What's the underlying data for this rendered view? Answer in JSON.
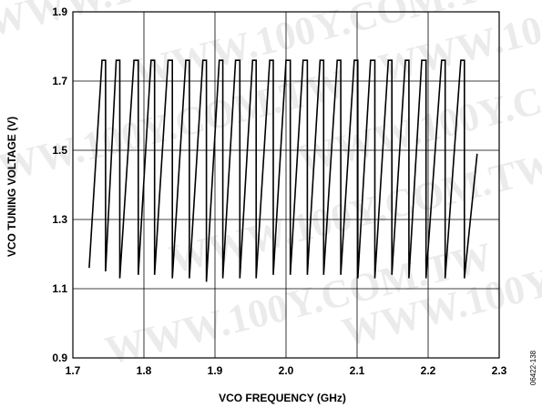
{
  "chart_data": {
    "type": "line",
    "xlabel": "VCO FREQUENCY (GHz)",
    "ylabel": "VCO TUNING VOLTAGE (V)",
    "xlim": [
      1.7,
      2.3
    ],
    "ylim": [
      0.9,
      1.9
    ],
    "x_ticks": [
      "1.7",
      "1.8",
      "1.9",
      "2.0",
      "2.1",
      "2.2",
      "2.3"
    ],
    "y_ticks": [
      "0.9",
      "1.1",
      "1.3",
      "1.5",
      "1.7",
      "1.9"
    ],
    "grid": true,
    "series": [
      {
        "x": [
          1.723,
          1.741,
          1.746,
          1.746,
          1.761,
          1.766,
          1.766,
          1.786,
          1.792,
          1.792,
          1.81,
          1.815,
          1.815,
          1.834,
          1.84,
          1.84,
          1.859,
          1.864,
          1.864,
          1.883,
          1.888,
          1.888,
          1.906,
          1.911,
          1.911,
          1.929,
          1.935,
          1.935,
          1.953,
          1.958,
          1.958,
          1.977,
          1.982,
          1.982,
          2.0,
          2.006,
          2.006,
          2.024,
          2.03,
          2.03,
          2.048,
          2.053,
          2.053,
          2.072,
          2.077,
          2.077,
          2.096,
          2.101,
          2.101,
          2.119,
          2.125,
          2.125,
          2.144,
          2.149,
          2.149,
          2.168,
          2.173,
          2.173,
          2.191,
          2.197,
          2.197,
          2.219,
          2.224,
          2.224,
          2.246,
          2.251,
          2.251,
          2.269
        ],
        "y": [
          1.16,
          1.76,
          1.76,
          1.15,
          1.76,
          1.76,
          1.13,
          1.76,
          1.76,
          1.14,
          1.76,
          1.76,
          1.14,
          1.76,
          1.76,
          1.13,
          1.76,
          1.76,
          1.13,
          1.76,
          1.76,
          1.12,
          1.76,
          1.76,
          1.13,
          1.76,
          1.76,
          1.13,
          1.76,
          1.76,
          1.13,
          1.76,
          1.76,
          1.14,
          1.76,
          1.76,
          1.14,
          1.76,
          1.76,
          1.14,
          1.76,
          1.76,
          1.14,
          1.76,
          1.76,
          1.14,
          1.76,
          1.76,
          1.13,
          1.76,
          1.76,
          1.13,
          1.76,
          1.76,
          1.14,
          1.76,
          1.76,
          1.13,
          1.76,
          1.76,
          1.13,
          1.76,
          1.76,
          1.13,
          1.76,
          1.76,
          1.13,
          1.49
        ]
      }
    ],
    "annotations": [
      "06422-138"
    ]
  },
  "colors": {
    "line": "#000000",
    "grid": "#000000",
    "watermark": "#c8c8c8"
  },
  "watermark": "WWW.100Y.COM.TW"
}
